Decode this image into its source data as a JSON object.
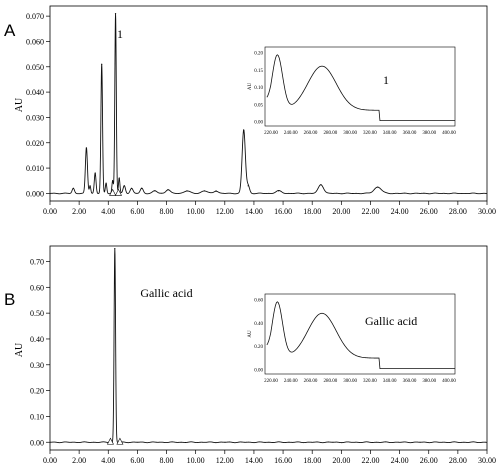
{
  "chart_data": [
    {
      "type": "line",
      "panel_label": "A",
      "title": "",
      "xlabel": "",
      "ylabel": "AU",
      "xlim": [
        0,
        30
      ],
      "ylim": [
        -0.003,
        0.074
      ],
      "x_ticks": [
        "0.00",
        "2.00",
        "4.00",
        "6.00",
        "8.00",
        "10.00",
        "12.00",
        "14.00",
        "16.00",
        "18.00",
        "20.00",
        "22.00",
        "24.00",
        "26.00",
        "28.00",
        "30.00"
      ],
      "y_ticks": [
        "0.000",
        "0.010",
        "0.020",
        "0.030",
        "0.040",
        "0.050",
        "0.060",
        "0.070"
      ],
      "annotation": "1",
      "annotation_x": 4.6,
      "peaks": [
        {
          "x": 1.6,
          "y": 0.002,
          "w": 0.08
        },
        {
          "x": 2.5,
          "y": 0.018,
          "w": 0.07
        },
        {
          "x": 2.75,
          "y": 0.003,
          "w": 0.05
        },
        {
          "x": 3.1,
          "y": 0.008,
          "w": 0.06
        },
        {
          "x": 3.55,
          "y": 0.051,
          "w": 0.055
        },
        {
          "x": 3.85,
          "y": 0.004,
          "w": 0.05
        },
        {
          "x": 4.3,
          "y": 0.005,
          "w": 0.05
        },
        {
          "x": 4.5,
          "y": 0.071,
          "w": 0.05
        },
        {
          "x": 4.75,
          "y": 0.006,
          "w": 0.05
        },
        {
          "x": 5.1,
          "y": 0.003,
          "w": 0.08
        },
        {
          "x": 5.6,
          "y": 0.002,
          "w": 0.1
        },
        {
          "x": 6.3,
          "y": 0.002,
          "w": 0.1
        },
        {
          "x": 7.2,
          "y": 0.001,
          "w": 0.15
        },
        {
          "x": 8.1,
          "y": 0.0015,
          "w": 0.15
        },
        {
          "x": 9.4,
          "y": 0.001,
          "w": 0.2
        },
        {
          "x": 10.6,
          "y": 0.001,
          "w": 0.2
        },
        {
          "x": 11.4,
          "y": 0.001,
          "w": 0.15
        },
        {
          "x": 13.3,
          "y": 0.025,
          "w": 0.11
        },
        {
          "x": 13.6,
          "y": 0.003,
          "w": 0.1
        },
        {
          "x": 15.7,
          "y": 0.001,
          "w": 0.2
        },
        {
          "x": 18.6,
          "y": 0.0035,
          "w": 0.18
        },
        {
          "x": 22.5,
          "y": 0.0025,
          "w": 0.25
        }
      ],
      "markers_x": [
        4.3,
        4.7
      ],
      "inset": {
        "y_ticks": [
          "0.00",
          "0.05",
          "0.10",
          "0.15",
          "0.20"
        ],
        "x_ticks": [
          "220.00",
          "240.00",
          "260.00",
          "280.00",
          "300.00",
          "320.00",
          "340.00",
          "360.00",
          "380.00",
          "400.00"
        ],
        "ylabel": "AU",
        "annotation": "1"
      }
    },
    {
      "type": "line",
      "panel_label": "B",
      "title": "",
      "xlabel": "",
      "ylabel": "AU",
      "xlim": [
        0,
        30
      ],
      "ylim": [
        -0.03,
        0.76
      ],
      "x_ticks": [
        "0.00",
        "2.00",
        "4.00",
        "6.00",
        "8.00",
        "10.00",
        "12.00",
        "14.00",
        "16.00",
        "18.00",
        "20.00",
        "22.00",
        "24.00",
        "26.00",
        "28.00",
        "30.00"
      ],
      "y_ticks": [
        "0.00",
        "0.10",
        "0.20",
        "0.30",
        "0.40",
        "0.50",
        "0.60",
        "0.70"
      ],
      "annotation": "Gallic acid",
      "annotation_x": 6.2,
      "peaks": [
        {
          "x": 4.45,
          "y": 0.75,
          "w": 0.05
        }
      ],
      "markers_x": [
        4.15,
        4.8
      ],
      "inset": {
        "y_ticks": [
          "0.00",
          "0.20",
          "0.40",
          "0.60"
        ],
        "x_ticks": [
          "220.00",
          "240.00",
          "260.00",
          "280.00",
          "300.00",
          "320.00",
          "340.00",
          "360.00",
          "380.00",
          "400.00"
        ],
        "ylabel": "AU",
        "annotation": "Gallic acid"
      }
    }
  ]
}
